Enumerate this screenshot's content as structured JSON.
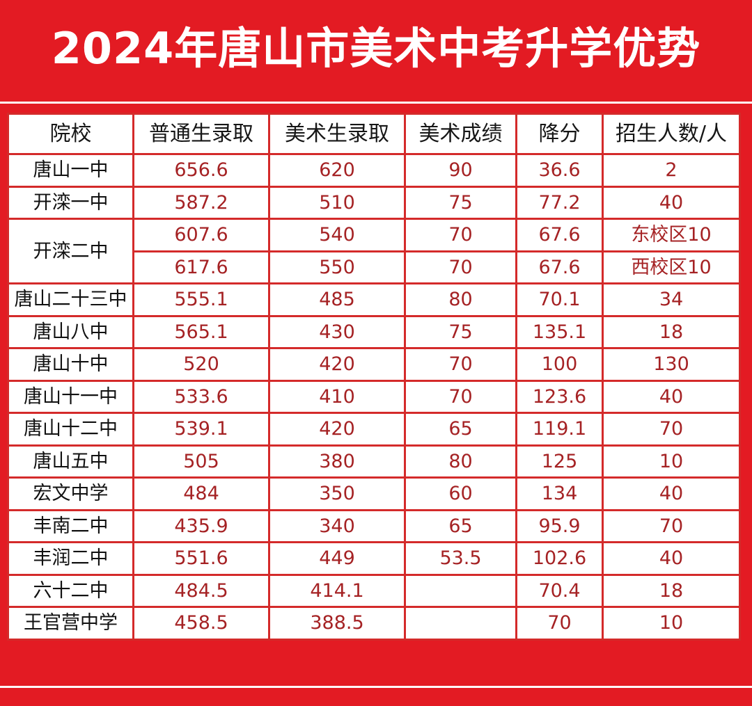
{
  "title": "2024年唐山市美术中考升学优势",
  "colors": {
    "accent": "#e31b23",
    "cell_text": "#a52224",
    "border": "#d42a2a"
  },
  "table": {
    "headers": [
      "院校",
      "普通生录取",
      "美术生录取",
      "美术成绩",
      "降分",
      "招生人数/人"
    ],
    "rows": [
      {
        "school": "唐山一中",
        "general": "656.6",
        "art": "620",
        "art_score": "90",
        "reduction": "36.6",
        "quota": "2"
      },
      {
        "school": "开滦一中",
        "general": "587.2",
        "art": "510",
        "art_score": "75",
        "reduction": "77.2",
        "quota": "40"
      },
      {
        "school": "开滦二中",
        "general": "607.6",
        "art": "540",
        "art_score": "70",
        "reduction": "67.6",
        "quota": "东校区10"
      },
      {
        "general": "617.6",
        "art": "550",
        "art_score": "70",
        "reduction": "67.6",
        "quota": "西校区10"
      },
      {
        "school": "唐山二十三中",
        "general": "555.1",
        "art": "485",
        "art_score": "80",
        "reduction": "70.1",
        "quota": "34"
      },
      {
        "school": "唐山八中",
        "general": "565.1",
        "art": "430",
        "art_score": "75",
        "reduction": "135.1",
        "quota": "18"
      },
      {
        "school": "唐山十中",
        "general": "520",
        "art": "420",
        "art_score": "70",
        "reduction": "100",
        "quota": "130"
      },
      {
        "school": "唐山十一中",
        "general": "533.6",
        "art": "410",
        "art_score": "70",
        "reduction": "123.6",
        "quota": "40"
      },
      {
        "school": "唐山十二中",
        "general": "539.1",
        "art": "420",
        "art_score": "65",
        "reduction": "119.1",
        "quota": "70"
      },
      {
        "school": "唐山五中",
        "general": "505",
        "art": "380",
        "art_score": "80",
        "reduction": "125",
        "quota": "10"
      },
      {
        "school": "宏文中学",
        "general": "484",
        "art": "350",
        "art_score": "60",
        "reduction": "134",
        "quota": "40"
      },
      {
        "school": "丰南二中",
        "general": "435.9",
        "art": "340",
        "art_score": "65",
        "reduction": "95.9",
        "quota": "70"
      },
      {
        "school": "丰润二中",
        "general": "551.6",
        "art": "449",
        "art_score": "53.5",
        "reduction": "102.6",
        "quota": "40"
      },
      {
        "school": "六十二中",
        "general": "484.5",
        "art": "414.1",
        "art_score": "",
        "reduction": "70.4",
        "quota": "18"
      },
      {
        "school": "王官营中学",
        "general": "458.5",
        "art": "388.5",
        "art_score": "",
        "reduction": "70",
        "quota": "10"
      }
    ]
  }
}
